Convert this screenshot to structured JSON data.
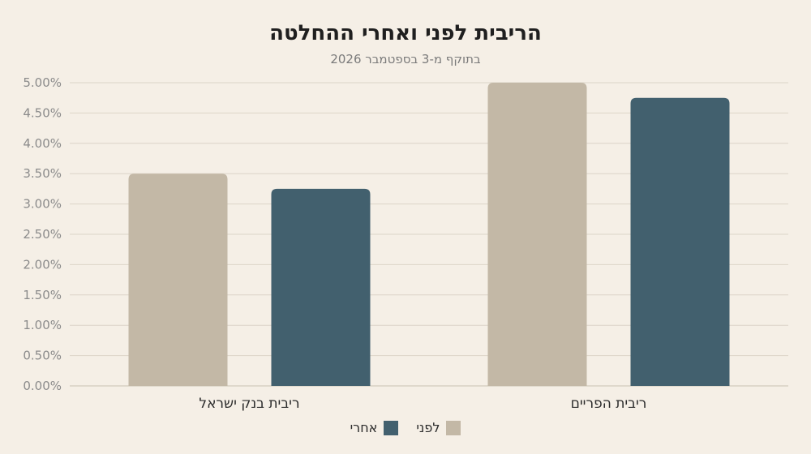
{
  "chart_data": {
    "type": "bar",
    "title": "הריבית לפני ואחרי ההחלטה",
    "subtitle": "בתוקף מ-3 בספטמבר 2026",
    "categories": [
      "ריבית בנק ישראל",
      "ריבית הפריים"
    ],
    "series": [
      {
        "name": "לפני",
        "values": [
          3.5,
          5.0
        ],
        "color": "#c3b8a6"
      },
      {
        "name": "אחרי",
        "values": [
          3.25,
          4.75
        ],
        "color": "#42606e"
      }
    ],
    "ylim": [
      0,
      5
    ],
    "yticks": [
      "0.00%",
      "0.50%",
      "1.00%",
      "1.50%",
      "2.00%",
      "2.50%",
      "3.00%",
      "3.50%",
      "4.00%",
      "4.50%",
      "5.00%"
    ],
    "ytick_values": [
      0,
      0.5,
      1,
      1.5,
      2,
      2.5,
      3,
      3.5,
      4,
      4.5,
      5
    ],
    "grid": true,
    "legend_position": "bottom-center",
    "xlabel": "",
    "ylabel": ""
  }
}
